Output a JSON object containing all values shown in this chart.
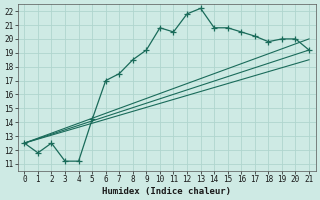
{
  "xlabel": "Humidex (Indice chaleur)",
  "bg_color": "#ceeae4",
  "line_color": "#1a6b5a",
  "grid_color": "#b0d5ce",
  "xlim": [
    -0.5,
    21.5
  ],
  "ylim": [
    10.5,
    22.5
  ],
  "xticks": [
    0,
    1,
    2,
    3,
    4,
    5,
    6,
    7,
    8,
    9,
    10,
    11,
    12,
    13,
    14,
    15,
    16,
    17,
    18,
    19,
    20,
    21
  ],
  "yticks": [
    11,
    12,
    13,
    14,
    15,
    16,
    17,
    18,
    19,
    20,
    21,
    22
  ],
  "curve1_x": [
    0,
    1,
    2,
    3,
    4,
    5,
    6,
    7,
    8,
    9,
    10,
    11,
    12,
    13,
    14,
    15,
    16,
    17,
    18,
    19,
    20,
    21
  ],
  "curve1_y": [
    12.5,
    11.8,
    12.5,
    11.2,
    11.2,
    14.2,
    17.0,
    17.5,
    18.5,
    19.2,
    20.8,
    20.5,
    21.8,
    22.2,
    20.8,
    20.8,
    20.5,
    20.2,
    19.8,
    20.0,
    20.0,
    19.2
  ],
  "line1_x": [
    0,
    21
  ],
  "line1_y": [
    12.5,
    20.0
  ],
  "line2_x": [
    0,
    21
  ],
  "line2_y": [
    12.5,
    19.2
  ],
  "line3_x": [
    0,
    21
  ],
  "line3_y": [
    12.5,
    18.5
  ]
}
